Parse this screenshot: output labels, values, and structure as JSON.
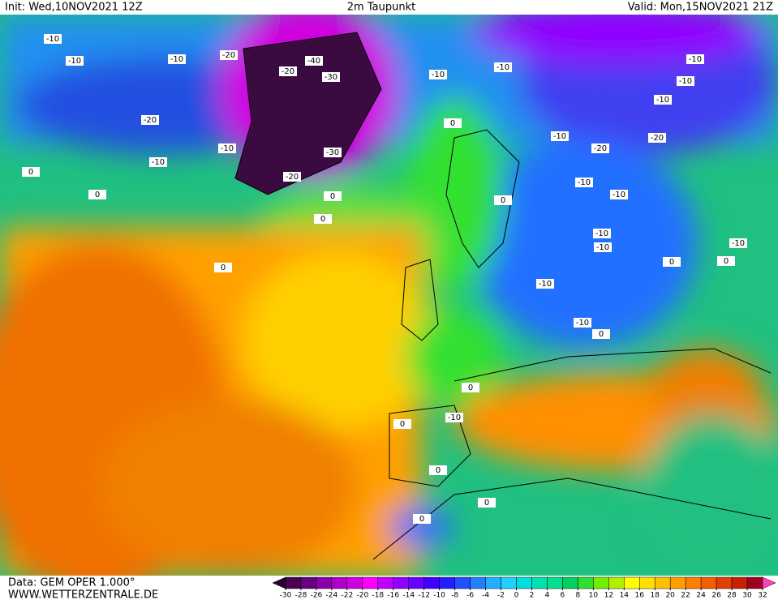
{
  "header": {
    "init": "Init: Wed,10NOV2021 12Z",
    "title": "2m Taupunkt",
    "valid": "Valid: Mon,15NOV2021 21Z"
  },
  "footer": {
    "data": "Data: GEM OPER 1.000°",
    "site": "WWW.WETTERZENTRALE.DE"
  },
  "contour_labels": [
    "-10",
    "-10",
    "-20",
    "-20",
    "-30",
    "-40",
    "-30",
    "-20",
    "-10",
    "-10",
    "-20",
    "-10",
    "0",
    "0",
    "0",
    "-10",
    "-10",
    "-10",
    "-10",
    "-10",
    "-20",
    "-10",
    "-20",
    "-10",
    "-10",
    "-10",
    "-10",
    "-10",
    "-10",
    "0",
    "0",
    "0",
    "0",
    "0",
    "0",
    "0",
    "-10",
    "0",
    "0",
    "0",
    "-10",
    "0",
    "0"
  ],
  "colorbar": {
    "ticks": [
      -30,
      -28,
      -26,
      -24,
      -22,
      -20,
      -18,
      -16,
      -14,
      -12,
      -10,
      -8,
      -6,
      -4,
      -2,
      0,
      2,
      4,
      6,
      8,
      10,
      12,
      14,
      16,
      18,
      20,
      22,
      24,
      26,
      28,
      30,
      32
    ],
    "colors": [
      "#2a0033",
      "#4b0050",
      "#6a0080",
      "#8a00a8",
      "#b000c8",
      "#d000e0",
      "#ff00ff",
      "#c000ff",
      "#9000ff",
      "#6a00ff",
      "#4000ff",
      "#2020ff",
      "#2050ff",
      "#2080ff",
      "#20b0ff",
      "#20d0ff",
      "#00e0e0",
      "#00e0b0",
      "#00e090",
      "#00d060",
      "#30e030",
      "#70f000",
      "#b0f000",
      "#ffff00",
      "#ffe000",
      "#ffc000",
      "#ffa000",
      "#ff8000",
      "#f06000",
      "#e04000",
      "#c82000",
      "#a00020",
      "#ff40c0"
    ]
  }
}
